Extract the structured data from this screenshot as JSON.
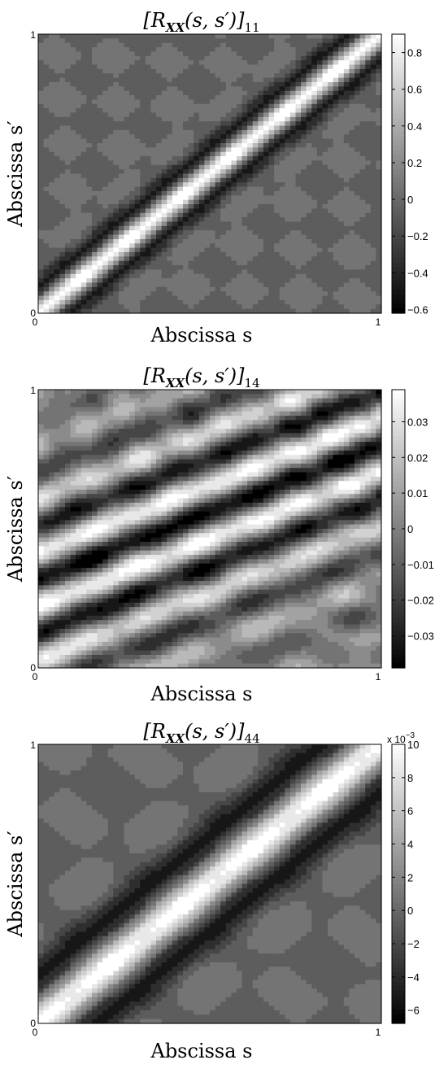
{
  "chart_data": [
    {
      "type": "heatmap",
      "title": {
        "main": "[R",
        "sub_bold": "XX",
        "args": "(s, s′)]",
        "index": "11"
      },
      "xlabel": "Abscissa s",
      "ylabel": "Abscissa s′",
      "xlim": [
        0,
        1
      ],
      "ylim": [
        0,
        1
      ],
      "x_ticks": [
        "0",
        "1"
      ],
      "y_ticks": [
        "0",
        "1"
      ],
      "grid": false,
      "colormap": "gray",
      "colorbar": {
        "min": -0.62,
        "max": 0.9,
        "exponent_label": "",
        "ticks": [
          {
            "value": 0.8,
            "label": "0.8"
          },
          {
            "value": 0.6,
            "label": "0.6"
          },
          {
            "value": 0.4,
            "label": "0.4"
          },
          {
            "value": 0.2,
            "label": "0.2"
          },
          {
            "value": 0.0,
            "label": "0"
          },
          {
            "value": -0.2,
            "label": "−0.2"
          },
          {
            "value": -0.4,
            "label": "−0.4"
          },
          {
            "value": -0.6,
            "label": "−0.6"
          }
        ]
      },
      "field": {
        "description": "stationary correlation, peak on diagonal s = s′",
        "peak_value": 0.9,
        "side_lobe_min": -0.62,
        "band_levels": 12
      }
    },
    {
      "type": "heatmap",
      "title": {
        "main": "[R",
        "sub_bold": "XX",
        "args": "(s, s′)]",
        "index": "14"
      },
      "xlabel": "Abscissa s",
      "ylabel": "Abscissa s′",
      "xlim": [
        0,
        1
      ],
      "ylim": [
        0,
        1
      ],
      "x_ticks": [
        "0",
        "1"
      ],
      "y_ticks": [
        "0",
        "1"
      ],
      "grid": false,
      "colormap": "gray",
      "colorbar": {
        "min": -0.039,
        "max": 0.039,
        "exponent_label": "",
        "ticks": [
          {
            "value": 0.03,
            "label": "0.03"
          },
          {
            "value": 0.02,
            "label": "0.02"
          },
          {
            "value": 0.01,
            "label": "0.01"
          },
          {
            "value": 0.0,
            "label": "0"
          },
          {
            "value": -0.01,
            "label": "−0.01"
          },
          {
            "value": -0.02,
            "label": "−0.02"
          },
          {
            "value": -0.03,
            "label": "−0.03"
          }
        ]
      },
      "field": {
        "description": "oscillating cross correlation, value 0 on diagonal",
        "peak_value": 0.039,
        "side_lobe_min": -0.039,
        "band_levels": 12
      }
    },
    {
      "type": "heatmap",
      "title": {
        "main": "[R",
        "sub_bold": "XX",
        "args": "(s, s′)]",
        "index": "44"
      },
      "xlabel": "Abscissa s",
      "ylabel": "Abscissa s′",
      "xlim": [
        0,
        1
      ],
      "ylim": [
        0,
        1
      ],
      "x_ticks": [
        "0",
        "1"
      ],
      "y_ticks": [
        "0",
        "1"
      ],
      "grid": false,
      "colormap": "gray",
      "colorbar": {
        "min": -6.8,
        "max": 10,
        "exponent_label": "x 10−3",
        "ticks": [
          {
            "value": 10,
            "label": "10"
          },
          {
            "value": 8,
            "label": "8"
          },
          {
            "value": 6,
            "label": "6"
          },
          {
            "value": 4,
            "label": "4"
          },
          {
            "value": 2,
            "label": "2"
          },
          {
            "value": 0,
            "label": "0"
          },
          {
            "value": -2,
            "label": "−2"
          },
          {
            "value": -4,
            "label": "−4"
          },
          {
            "value": -6,
            "label": "−6"
          }
        ]
      },
      "field": {
        "description": "broader stationary correlation, peak on diagonal s = s′",
        "peak_value": 10,
        "side_lobe_min": -6.8,
        "band_levels": 12
      }
    }
  ]
}
